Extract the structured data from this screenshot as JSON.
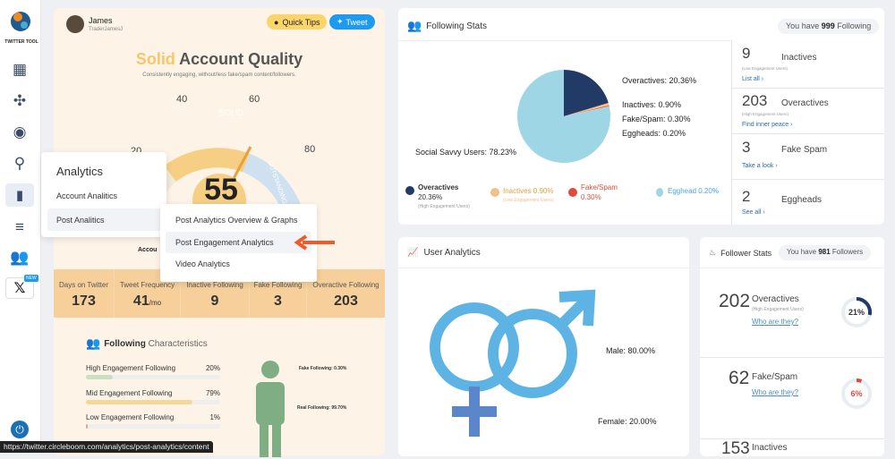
{
  "app": {
    "logo_label": "TWITTER TOOL",
    "new_badge": "NEW"
  },
  "profile": {
    "name": "James",
    "handle": "TraderJamesJ",
    "quick_tips": "Quick Tips",
    "tweet": "Tweet"
  },
  "quality": {
    "word1": "Solid",
    "word2": "Account Quality",
    "subtitle": "Consistently engaging, without/less fake/spam content/followers.",
    "score": "55",
    "g40": "40",
    "g60": "60",
    "g80": "80",
    "g20": "20",
    "solid": "SOLID",
    "outstanding": "OUTSTANDING",
    "partial": "Accou"
  },
  "stats": [
    {
      "label": "Days on Twitter",
      "value": "173"
    },
    {
      "label": "Tweet Frequency",
      "value": "41",
      "unit": "/mo"
    },
    {
      "label": "Inactive Following",
      "value": "9"
    },
    {
      "label": "Fake Following",
      "value": "3"
    },
    {
      "label": "Overactive Following",
      "value": "203"
    }
  ],
  "fchar": {
    "title1": "Following",
    "title2": "Characteristics",
    "rows": [
      {
        "label": "High Engagement Following",
        "value": "20%",
        "pct": 20
      },
      {
        "label": "Mid Engagement Following",
        "value": "79%",
        "pct": 79
      },
      {
        "label": "Low Engagement Following",
        "value": "1%",
        "pct": 1
      }
    ],
    "fake_label": "Fake Following: 0.30%",
    "real_label": "Real Following: 99.70%"
  },
  "menu": {
    "title": "Analytics",
    "item1": "Account Analitics",
    "item2": "Post Analitics",
    "sub1": "Post Analytics Overview & Graphs",
    "sub2": "Post Engagement Analytics",
    "sub3": "Video Analytics"
  },
  "following": {
    "title": "Following Stats",
    "you_have_pre": "You have",
    "count": "999",
    "you_have_post": "Following",
    "pie_labels": {
      "over": "Overactives: 20.36%",
      "inactive": "Inactives: 0.90%",
      "fake": "Fake/Spam: 0.30%",
      "egg": "Eggheads: 0.20%",
      "social": "Social Savvy Users: 78.23%"
    },
    "legend": {
      "over": "Overactives",
      "over_v": "20.36%",
      "over_sub": "(High Engagement Users)",
      "inactive": "Inactives 0.90%",
      "inactive_sub": "(Low Engagement Users)",
      "fake": "Fake/Spam",
      "fake_v": "0.30%",
      "egg": "Egghead 0.20%"
    },
    "insights": [
      {
        "num": "9",
        "label": "Inactives",
        "sub": "(Low Engagement Users)",
        "link": "List all ›"
      },
      {
        "num": "203",
        "label": "Overactives",
        "sub": "(High Engagement Users)",
        "link": "Find inner peace ›"
      },
      {
        "num": "3",
        "label": "Fake Spam",
        "sub": "",
        "link": "Take a look ›"
      },
      {
        "num": "2",
        "label": "Eggheads",
        "sub": "",
        "link": "See all ›"
      }
    ]
  },
  "user_analytics": {
    "title": "User Analytics",
    "male": "Male: 80.00%",
    "female": "Female: 20.00%"
  },
  "follower": {
    "title": "Follower Stats",
    "you_have_pre": "You have",
    "count": "981",
    "you_have_post": "Followers",
    "r1_num": "202",
    "r1_label": "Overactives",
    "r1_sub": "(High Engagement Users)",
    "r1_link": "Who are they?",
    "r1_pct": "21%",
    "r2_num": "62",
    "r2_label": "Fake/Spam",
    "r2_link": "Who are they?",
    "r2_pct": "6%",
    "r3_num": "153",
    "r3_label": "Inactives"
  },
  "status_url": "https://twitter.circleboom.com/analytics/post-analytics/content",
  "chart_data": {
    "type": "pie",
    "title": "",
    "slices": [
      {
        "name": "Social Savvy Users",
        "value": 78.23
      },
      {
        "name": "Overactives",
        "value": 20.36
      },
      {
        "name": "Inactives",
        "value": 0.9
      },
      {
        "name": "Fake/Spam",
        "value": 0.3
      },
      {
        "name": "Eggheads",
        "value": 0.2
      }
    ],
    "colors": {
      "Social Savvy Users": "#9fd6e5",
      "Overactives": "#223a66",
      "Inactives": "#f0c08a",
      "Fake/Spam": "#e24a3b",
      "Eggheads": "#bfe3ef"
    }
  }
}
